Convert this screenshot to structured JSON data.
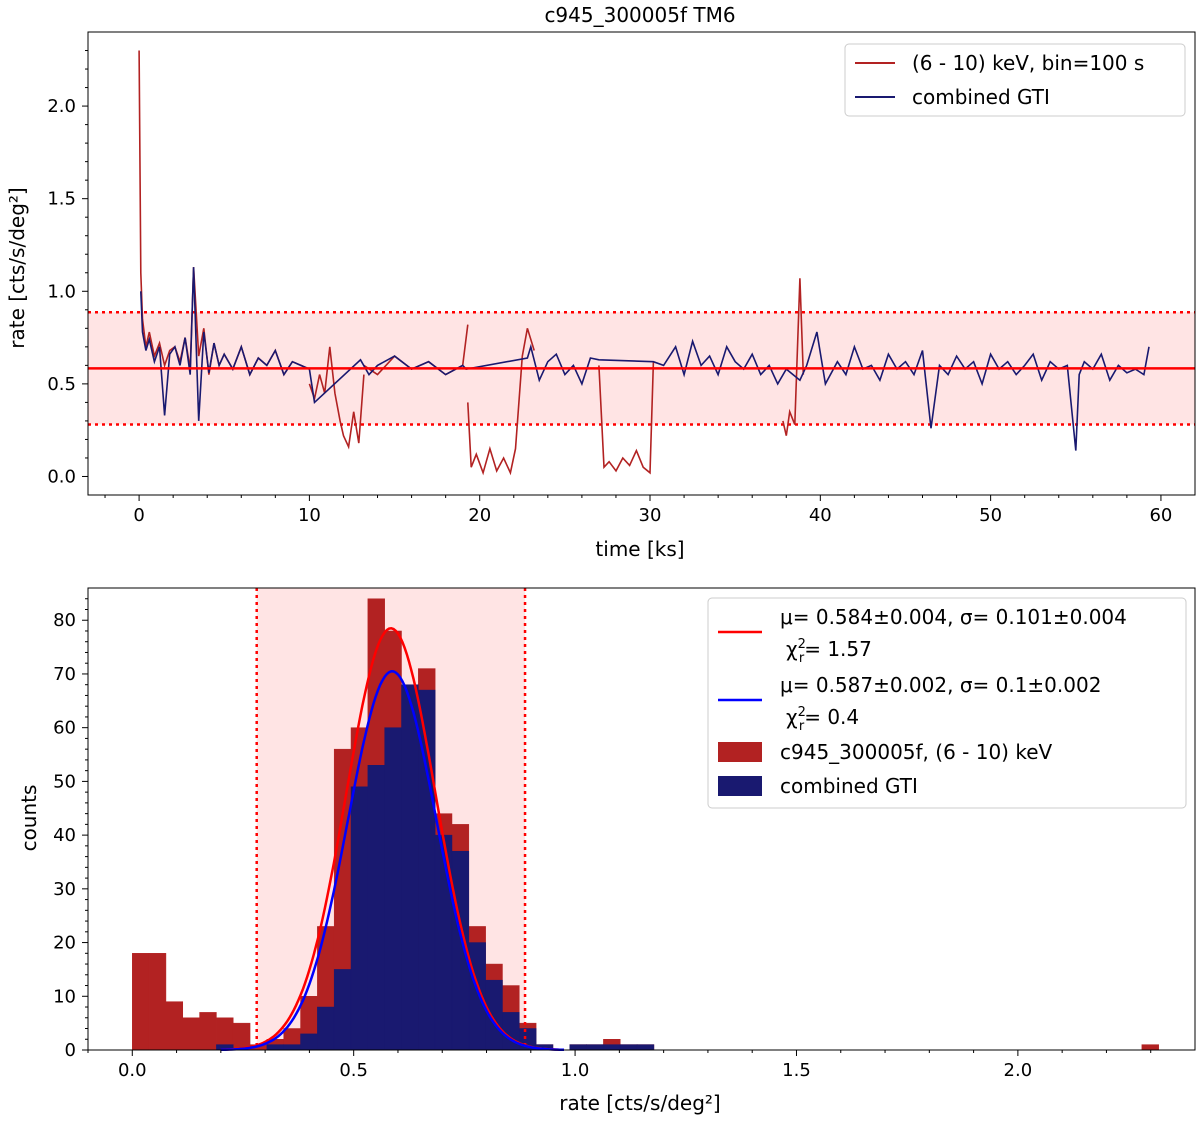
{
  "figure_title": "c945_300005f TM6",
  "colors": {
    "lightcurve": "#b22222",
    "gti": "#191970",
    "mean_line": "#ff0000",
    "band_fill": "#ffe4e4",
    "fit_all": "#ff0000",
    "fit_gti": "#0000ff",
    "hist_all": "#b22222",
    "hist_gti": "#191970"
  },
  "chart_data": [
    {
      "type": "line",
      "xlabel": "time [ks]",
      "ylabel": "rate [cts/s/deg²]",
      "xlim": [
        -3,
        62
      ],
      "ylim": [
        -0.1,
        2.4
      ],
      "xticks": [
        "0",
        "10",
        "20",
        "30",
        "40",
        "50",
        "60"
      ],
      "yticks": [
        "0.0",
        "0.5",
        "1.0",
        "1.5",
        "2.0"
      ],
      "legend_position": "top-right",
      "mean_rate": 0.584,
      "band": [
        0.281,
        0.887
      ],
      "series": [
        {
          "name": "(6 - 10) keV, bin=100 s",
          "description_of_shape": "mostly 0.5-0.7 with noise, drops near 11-13 ks, 19-23 ks, 27-30 ks, 38 ks",
          "segments": [
            {
              "x": [
                0.0,
                0.1,
                0.2,
                0.4,
                0.6,
                0.9,
                1.2,
                1.5,
                1.8,
                2.1,
                2.4,
                2.7,
                3.0,
                3.2,
                3.5,
                3.8,
                4.1,
                4.4,
                4.7,
                5.0,
                5.5,
                6.0,
                6.5,
                7.0,
                7.5,
                8.0,
                8.5,
                9.0,
                9.5,
                10.0
              ],
              "y": [
                2.3,
                1.1,
                0.85,
                0.7,
                0.78,
                0.65,
                0.72,
                0.6,
                0.68,
                0.7,
                0.62,
                0.75,
                0.58,
                1.13,
                0.65,
                0.8,
                0.55,
                0.72,
                0.6,
                0.66,
                0.58,
                0.7,
                0.55,
                0.64,
                0.6,
                0.68,
                0.55,
                0.62,
                0.6,
                0.58
              ]
            },
            {
              "x": [
                10.0,
                10.3,
                10.6,
                10.9,
                11.2,
                11.5,
                11.8,
                12.0,
                12.3,
                12.6,
                12.9,
                13.2
              ],
              "y": [
                0.5,
                0.42,
                0.55,
                0.45,
                0.7,
                0.45,
                0.3,
                0.22,
                0.16,
                0.35,
                0.18,
                0.55
              ]
            },
            {
              "x": [
                13.2,
                14.0,
                15.0,
                16.0,
                17.0,
                18.0,
                19.0,
                19.3
              ],
              "y": [
                0.6,
                0.55,
                0.65,
                0.58,
                0.62,
                0.55,
                0.6,
                0.82
              ]
            },
            {
              "x": [
                19.3,
                19.5,
                19.8,
                20.2,
                20.6,
                21.0,
                21.4,
                21.8,
                22.1,
                22.5
              ],
              "y": [
                0.4,
                0.05,
                0.12,
                0.02,
                0.15,
                0.03,
                0.1,
                0.02,
                0.15,
                0.65
              ]
            },
            {
              "x": [
                22.5,
                22.8,
                23.2
              ],
              "y": [
                0.65,
                0.8,
                0.68
              ]
            },
            {
              "x": [
                27.0,
                27.3,
                27.6,
                28.0,
                28.4,
                28.8,
                29.2,
                29.6,
                30.0,
                30.2
              ],
              "y": [
                0.6,
                0.05,
                0.08,
                0.03,
                0.1,
                0.06,
                0.14,
                0.05,
                0.02,
                0.62
              ]
            },
            {
              "x": [
                37.8,
                38.0,
                38.2,
                38.5,
                38.8,
                39.0
              ],
              "y": [
                0.3,
                0.22,
                0.35,
                0.28,
                1.07,
                0.55
              ]
            }
          ]
        },
        {
          "name": "combined GTI",
          "x": [
            0.1,
            0.2,
            0.4,
            0.6,
            0.9,
            1.2,
            1.5,
            1.8,
            2.1,
            2.4,
            2.7,
            3.0,
            3.2,
            3.5,
            3.8,
            4.1,
            4.4,
            4.7,
            5.0,
            5.5,
            6.0,
            6.5,
            7.0,
            7.5,
            8.0,
            8.5,
            9.0,
            9.5,
            10.0,
            10.3,
            13.0,
            13.5,
            14.0,
            15.0,
            16.0,
            17.0,
            18.0,
            19.0,
            19.2,
            22.8,
            23.0,
            23.5,
            24.0,
            24.5,
            25.0,
            25.5,
            26.0,
            26.5,
            27.0,
            30.2,
            30.8,
            31.5,
            32.0,
            32.5,
            33.0,
            33.5,
            34.0,
            34.5,
            35.0,
            35.5,
            36.0,
            36.5,
            37.0,
            37.5,
            38.0,
            38.8,
            39.2,
            39.8,
            40.3,
            41.0,
            41.5,
            42.0,
            42.5,
            43.0,
            43.5,
            44.0,
            44.5,
            45.0,
            45.5,
            46.0,
            46.5,
            47.0,
            47.5,
            48.0,
            48.5,
            49.0,
            49.5,
            50.0,
            50.5,
            51.0,
            51.5,
            52.0,
            52.5,
            53.0,
            53.5,
            54.0,
            54.5,
            55.0,
            55.2,
            55.5,
            56.0,
            56.5,
            57.0,
            57.5,
            58.0,
            58.5,
            59.0,
            59.3
          ],
          "y": [
            1.0,
            0.78,
            0.68,
            0.74,
            0.62,
            0.7,
            0.33,
            0.66,
            0.7,
            0.6,
            0.75,
            0.55,
            1.13,
            0.3,
            0.78,
            0.56,
            0.72,
            0.6,
            0.66,
            0.58,
            0.7,
            0.55,
            0.64,
            0.6,
            0.68,
            0.55,
            0.62,
            0.6,
            0.58,
            0.4,
            0.63,
            0.55,
            0.6,
            0.65,
            0.58,
            0.62,
            0.55,
            0.6,
            0.58,
            0.64,
            0.7,
            0.52,
            0.62,
            0.66,
            0.55,
            0.6,
            0.5,
            0.64,
            0.63,
            0.62,
            0.6,
            0.7,
            0.55,
            0.73,
            0.6,
            0.65,
            0.55,
            0.7,
            0.62,
            0.58,
            0.66,
            0.55,
            0.6,
            0.5,
            0.58,
            0.52,
            0.6,
            0.78,
            0.5,
            0.62,
            0.55,
            0.7,
            0.58,
            0.6,
            0.52,
            0.66,
            0.58,
            0.62,
            0.55,
            0.68,
            0.26,
            0.6,
            0.55,
            0.65,
            0.58,
            0.62,
            0.5,
            0.66,
            0.58,
            0.62,
            0.55,
            0.6,
            0.66,
            0.52,
            0.62,
            0.58,
            0.6,
            0.14,
            0.55,
            0.62,
            0.58,
            0.66,
            0.52,
            0.6,
            0.56,
            0.58,
            0.55,
            0.7
          ]
        }
      ]
    },
    {
      "type": "bar",
      "xlabel": "rate [cts/s/deg²]",
      "ylabel": "counts",
      "xlim": [
        -0.1,
        2.4
      ],
      "ylim": [
        0,
        86
      ],
      "xticks": [
        "0.0",
        "0.5",
        "1.0",
        "1.5",
        "2.0"
      ],
      "yticks": [
        "0",
        "10",
        "20",
        "30",
        "40",
        "50",
        "60",
        "70",
        "80"
      ],
      "legend_position": "top-right",
      "band": [
        0.281,
        0.887
      ],
      "bin_width": 0.038,
      "series": [
        {
          "name": "c945_300005f, (6 - 10) keV",
          "bin_starts": [
            0.0,
            0.038,
            0.076,
            0.114,
            0.152,
            0.19,
            0.228,
            0.266,
            0.304,
            0.342,
            0.38,
            0.418,
            0.456,
            0.494,
            0.532,
            0.57,
            0.608,
            0.646,
            0.684,
            0.722,
            0.76,
            0.798,
            0.836,
            0.874,
            0.912,
            0.95,
            0.988,
            1.026,
            1.064,
            1.102,
            1.14,
            2.28
          ],
          "values": [
            18,
            18,
            9,
            6,
            7,
            6,
            5,
            1,
            2,
            4,
            10,
            23,
            56,
            60,
            84,
            78,
            67,
            71,
            44,
            42,
            23,
            16,
            12,
            5,
            1,
            0,
            1,
            1,
            2,
            1,
            1,
            1
          ]
        },
        {
          "name": "combined GTI",
          "bin_starts": [
            0.0,
            0.038,
            0.076,
            0.114,
            0.152,
            0.19,
            0.228,
            0.266,
            0.304,
            0.342,
            0.38,
            0.418,
            0.456,
            0.494,
            0.532,
            0.57,
            0.608,
            0.646,
            0.684,
            0.722,
            0.76,
            0.798,
            0.836,
            0.874,
            0.912,
            0.95,
            0.988,
            1.026,
            1.064,
            1.102,
            1.14
          ],
          "values": [
            0,
            0,
            0,
            0,
            0,
            1,
            0,
            0,
            1,
            1,
            3,
            8,
            15,
            49,
            53,
            60,
            68,
            67,
            40,
            37,
            20,
            13,
            7,
            4,
            1,
            0,
            1,
            1,
            1,
            1,
            1
          ]
        }
      ],
      "fits": [
        {
          "mu_label": "μ= 0.584±0.004, σ= 0.101±0.004",
          "chi_label": "χ²_r= 1.57",
          "chi_value": "1.57",
          "mu": 0.584,
          "sigma": 0.101,
          "amplitude": 78.5
        },
        {
          "mu_label": "μ= 0.587±0.002, σ= 0.1±0.002",
          "chi_label": "χ²_r= 0.4",
          "chi_value": "0.4",
          "mu": 0.587,
          "sigma": 0.1,
          "amplitude": 70.5
        }
      ]
    }
  ]
}
